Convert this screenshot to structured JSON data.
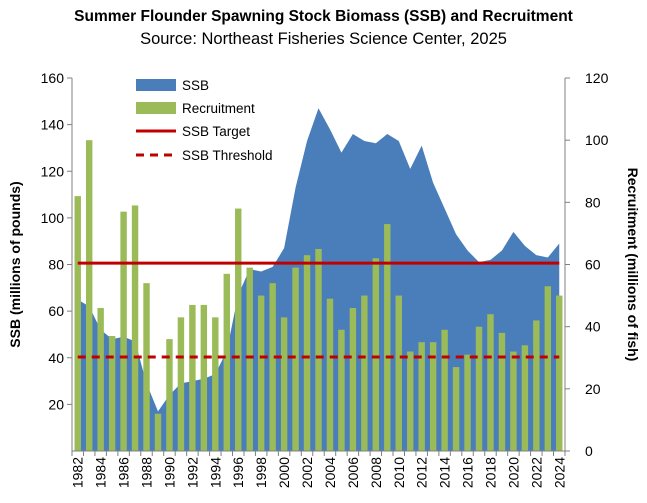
{
  "chart_data": {
    "type": "bar+area",
    "title": "Summer Flounder Spawning Stock Biomass (SSB) and Recruitment",
    "subtitle": "Source: Northeast Fisheries Science Center, 2025",
    "ylabel_left": "SSB (millions of pounds)",
    "ylabel_right": "Recruitment (millions of fish)",
    "ylim_left": [
      0,
      160
    ],
    "yticks_left": [
      "20",
      "40",
      "60",
      "80",
      "100",
      "120",
      "140",
      "160"
    ],
    "ylim_right": [
      0,
      120
    ],
    "yticks_right": [
      "0",
      "20",
      "40",
      "60",
      "80",
      "100",
      "120"
    ],
    "x": [
      1982,
      1983,
      1984,
      1985,
      1986,
      1987,
      1988,
      1989,
      1990,
      1991,
      1992,
      1993,
      1994,
      1995,
      1996,
      1997,
      1998,
      1999,
      2000,
      2001,
      2002,
      2003,
      2004,
      2005,
      2006,
      2007,
      2008,
      2009,
      2010,
      2011,
      2012,
      2013,
      2014,
      2015,
      2016,
      2017,
      2018,
      2019,
      2020,
      2021,
      2022,
      2023,
      2024
    ],
    "xtick_labels": [
      "1982",
      "1984",
      "1986",
      "1988",
      "1990",
      "1992",
      "1994",
      "1996",
      "1998",
      "2000",
      "2002",
      "2004",
      "2006",
      "2008",
      "2010",
      "2012",
      "2014",
      "2016",
      "2018",
      "2020",
      "2022",
      "2024"
    ],
    "series": [
      {
        "name": "SSB",
        "type": "area",
        "axis": "left",
        "color": "#4a7ebb",
        "values": [
          65,
          62,
          52,
          48,
          49,
          47,
          29,
          17,
          24,
          29,
          30,
          31,
          33,
          43,
          67,
          78,
          77,
          79,
          87,
          113,
          133,
          147,
          138,
          128,
          136,
          133,
          132,
          136,
          133,
          121,
          131,
          115,
          104,
          93,
          86,
          81,
          82,
          86,
          94,
          88,
          84,
          83,
          89
        ]
      },
      {
        "name": "Recruitment",
        "type": "bar",
        "axis": "right",
        "color": "#9bbb59",
        "values": [
          82,
          100,
          46,
          37,
          77,
          79,
          54,
          12,
          36,
          43,
          47,
          47,
          43,
          57,
          78,
          59,
          50,
          54,
          43,
          59,
          63,
          65,
          49,
          39,
          46,
          50,
          62,
          73,
          50,
          32,
          35,
          35,
          39,
          27,
          31,
          40,
          44,
          38,
          32,
          34,
          42,
          53,
          50
        ]
      },
      {
        "name": "SSB Target",
        "type": "hline",
        "axis": "left",
        "color": "#c00000",
        "value": 80.6
      },
      {
        "name": "SSB Threshold",
        "type": "hline-dashed",
        "axis": "left",
        "color": "#c00000",
        "value": 40.3
      }
    ],
    "legend": [
      "SSB",
      "Recruitment",
      "SSB Target",
      "SSB Threshold"
    ],
    "legend_position": "top-left",
    "grid": false
  }
}
